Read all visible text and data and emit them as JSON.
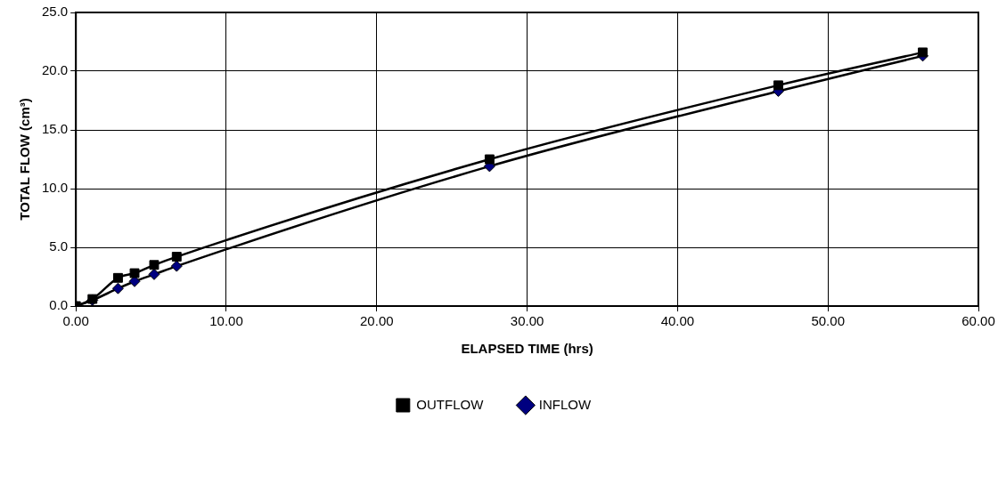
{
  "chart_data": {
    "type": "line",
    "xlabel": "ELAPSED TIME (hrs)",
    "ylabel": "TOTAL FLOW (cm³)",
    "xlim": [
      0,
      60
    ],
    "xticks": [
      {
        "value": 0,
        "label": "0.00"
      },
      {
        "value": 10,
        "label": "10.00"
      },
      {
        "value": 20,
        "label": "20.00"
      },
      {
        "value": 30,
        "label": "30.00"
      },
      {
        "value": 40,
        "label": "40.00"
      },
      {
        "value": 50,
        "label": "50.00"
      },
      {
        "value": 60,
        "label": "60.00"
      }
    ],
    "ylim": [
      0,
      25
    ],
    "yticks": [
      {
        "value": 0,
        "label": "0.0"
      },
      {
        "value": 5,
        "label": "5.0"
      },
      {
        "value": 10,
        "label": "10.0"
      },
      {
        "value": 15,
        "label": "15.0"
      },
      {
        "value": 20,
        "label": "20.0"
      },
      {
        "value": 25,
        "label": "25.0"
      }
    ],
    "grid": true,
    "legend": "bottom",
    "line_style": "solid",
    "series": [
      {
        "name": "INFLOW",
        "color": "#000080",
        "marker": "diamond",
        "x": [
          0,
          1.1,
          2.8,
          3.9,
          5.2,
          6.7,
          27.5,
          46.7,
          56.3
        ],
        "values": [
          0,
          0.5,
          1.5,
          2.1,
          2.7,
          3.4,
          11.9,
          18.3,
          21.3
        ]
      },
      {
        "name": "OUTFLOW",
        "color": "#000000",
        "marker": "square",
        "x": [
          0,
          1.1,
          2.8,
          3.9,
          5.2,
          6.7,
          27.5,
          46.7,
          56.3
        ],
        "values": [
          0,
          0.6,
          2.4,
          2.8,
          3.5,
          4.2,
          12.5,
          18.8,
          21.6
        ]
      }
    ]
  }
}
